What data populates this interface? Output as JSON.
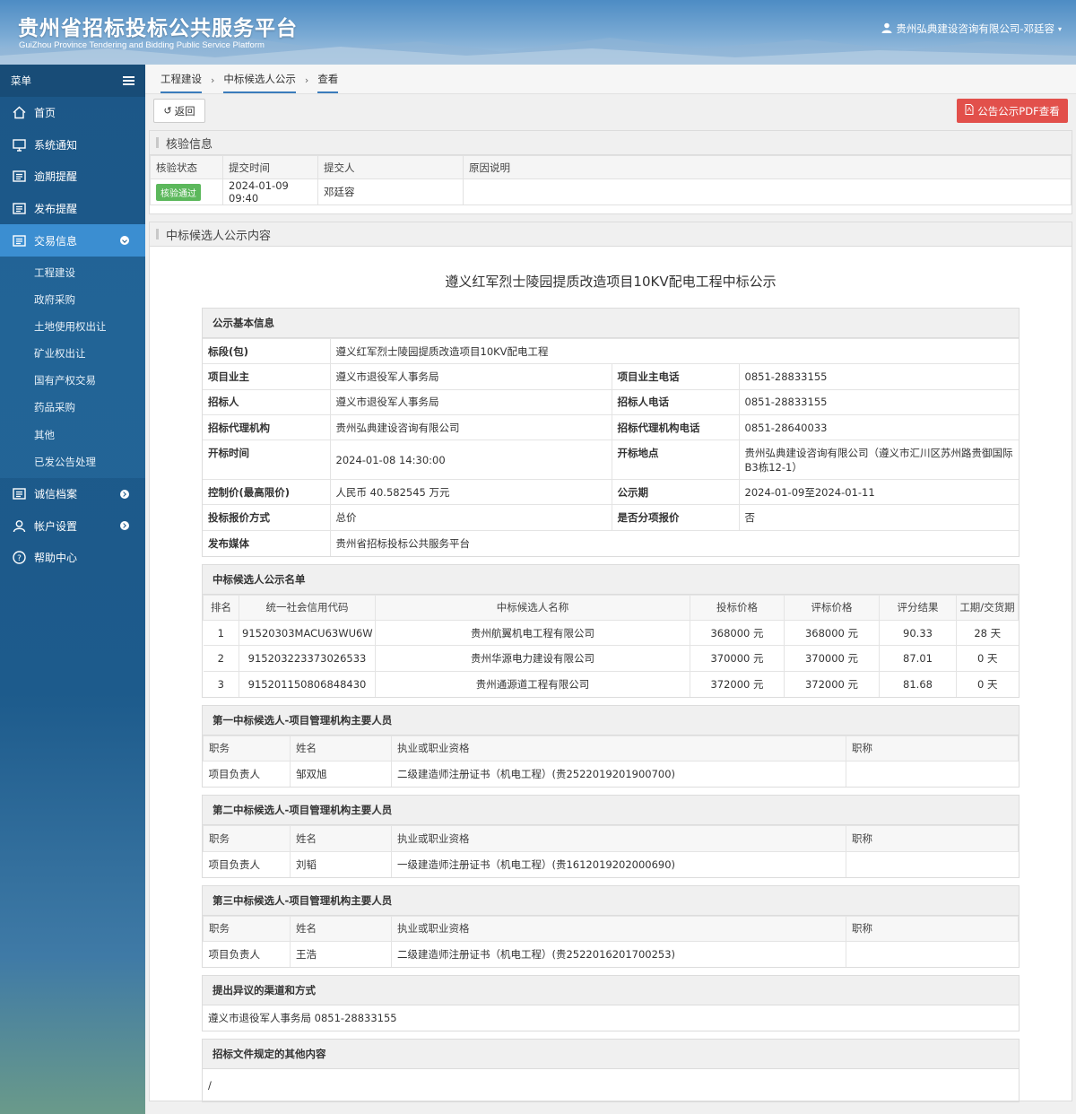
{
  "header": {
    "title_cn": "贵州省招标投标公共服务平台",
    "title_en": "GuiZhou Province Tendering and Bidding Public Service Platform",
    "user": "贵州弘典建设咨询有限公司-邓廷容"
  },
  "sidebar": {
    "menu_label": "菜单",
    "items": [
      {
        "label": "首页",
        "icon": "home-icon"
      },
      {
        "label": "系统通知",
        "icon": "monitor-icon"
      },
      {
        "label": "逾期提醒",
        "icon": "list-icon"
      },
      {
        "label": "发布提醒",
        "icon": "list-icon"
      },
      {
        "label": "交易信息",
        "icon": "list-icon"
      }
    ],
    "sub_items": [
      "工程建设",
      "政府采购",
      "土地使用权出让",
      "矿业权出让",
      "国有产权交易",
      "药品采购",
      "其他",
      "已发公告处理"
    ],
    "bottom_items": [
      {
        "label": "诚信档案",
        "icon": "list-icon"
      },
      {
        "label": "帐户设置",
        "icon": "user-icon"
      },
      {
        "label": "帮助中心",
        "icon": "help-icon"
      }
    ],
    "colors": {
      "bg": "#1d5b8c",
      "active": "#3b8ed1"
    }
  },
  "breadcrumb": [
    "工程建设",
    "中标候选人公示",
    "查看"
  ],
  "toolbar": {
    "back_label": "返回",
    "pdf_label": "公告公示PDF查看",
    "pdf_color": "#e2504b"
  },
  "verify": {
    "title": "核验信息",
    "headers": [
      "核验状态",
      "提交时间",
      "提交人",
      "原因说明"
    ],
    "row": {
      "status": "核验通过",
      "time": "2024-01-09 09:40",
      "submitter": "邓廷容",
      "reason": ""
    }
  },
  "notice": {
    "panel_title": "中标候选人公示内容",
    "doc_title": "遵义红军烈士陵园提质改造项目10KV配电工程中标公示",
    "basic": {
      "title": "公示基本信息",
      "section_label": "标段(包)",
      "section_value": "遵义红军烈士陵园提质改造项目10KV配电工程",
      "owner_label": "项目业主",
      "owner_value": "遵义市退役军人事务局",
      "owner_tel_label": "项目业主电话",
      "owner_tel_value": "0851-28833155",
      "tenderer_label": "招标人",
      "tenderer_value": "遵义市退役军人事务局",
      "tenderer_tel_label": "招标人电话",
      "tenderer_tel_value": "0851-28833155",
      "agency_label": "招标代理机构",
      "agency_value": "贵州弘典建设咨询有限公司",
      "agency_tel_label": "招标代理机构电话",
      "agency_tel_value": "0851-28640033",
      "open_time_label": "开标时间",
      "open_time_value": "2024-01-08 14:30:00",
      "open_place_label": "开标地点",
      "open_place_value": "贵州弘典建设咨询有限公司（遵义市汇川区苏州路贵御国际B3栋12-1）",
      "ctrl_price_label": "控制价(最高限价)",
      "ctrl_price_value": "人民币 40.582545 万元",
      "period_label": "公示期",
      "period_value": "2024-01-09至2024-01-11",
      "bid_mode_label": "投标报价方式",
      "bid_mode_value": "总价",
      "itemized_label": "是否分项报价",
      "itemized_value": "否",
      "media_label": "发布媒体",
      "media_value": "贵州省招标投标公共服务平台"
    },
    "candidates": {
      "title": "中标候选人公示名单",
      "headers": [
        "排名",
        "统一社会信用代码",
        "中标候选人名称",
        "投标价格",
        "评标价格",
        "评分结果",
        "工期/交货期"
      ],
      "rows": [
        [
          "1",
          "91520303MACU63WU6W",
          "贵州航翼机电工程有限公司",
          "368000 元",
          "368000 元",
          "90.33",
          "28 天"
        ],
        [
          "2",
          "915203223373026533",
          "贵州华源电力建设有限公司",
          "370000 元",
          "370000 元",
          "87.01",
          "0 天"
        ],
        [
          "3",
          "915201150806848430",
          "贵州通源道工程有限公司",
          "372000 元",
          "372000 元",
          "81.68",
          "0 天"
        ]
      ]
    },
    "pm_headers": [
      "职务",
      "姓名",
      "执业或职业资格",
      "职称"
    ],
    "pm1": {
      "title": "第一中标候选人-项目管理机构主要人员",
      "role": "项目负责人",
      "name": "邹双旭",
      "qual": "二级建造师注册证书（机电工程）(贵2522019201900700)",
      "rank": ""
    },
    "pm2": {
      "title": "第二中标候选人-项目管理机构主要人员",
      "role": "项目负责人",
      "name": "刘韬",
      "qual": "一级建造师注册证书（机电工程）(贵1612019202000690)",
      "rank": ""
    },
    "pm3": {
      "title": "第三中标候选人-项目管理机构主要人员",
      "role": "项目负责人",
      "name": "王浩",
      "qual": "二级建造师注册证书（机电工程）(贵2522016201700253)",
      "rank": ""
    },
    "objection": {
      "title": "提出异议的渠道和方式",
      "text": "遵义市退役军人事务局 0851-28833155"
    },
    "other": {
      "title": "招标文件规定的其他内容",
      "text": "/"
    }
  }
}
